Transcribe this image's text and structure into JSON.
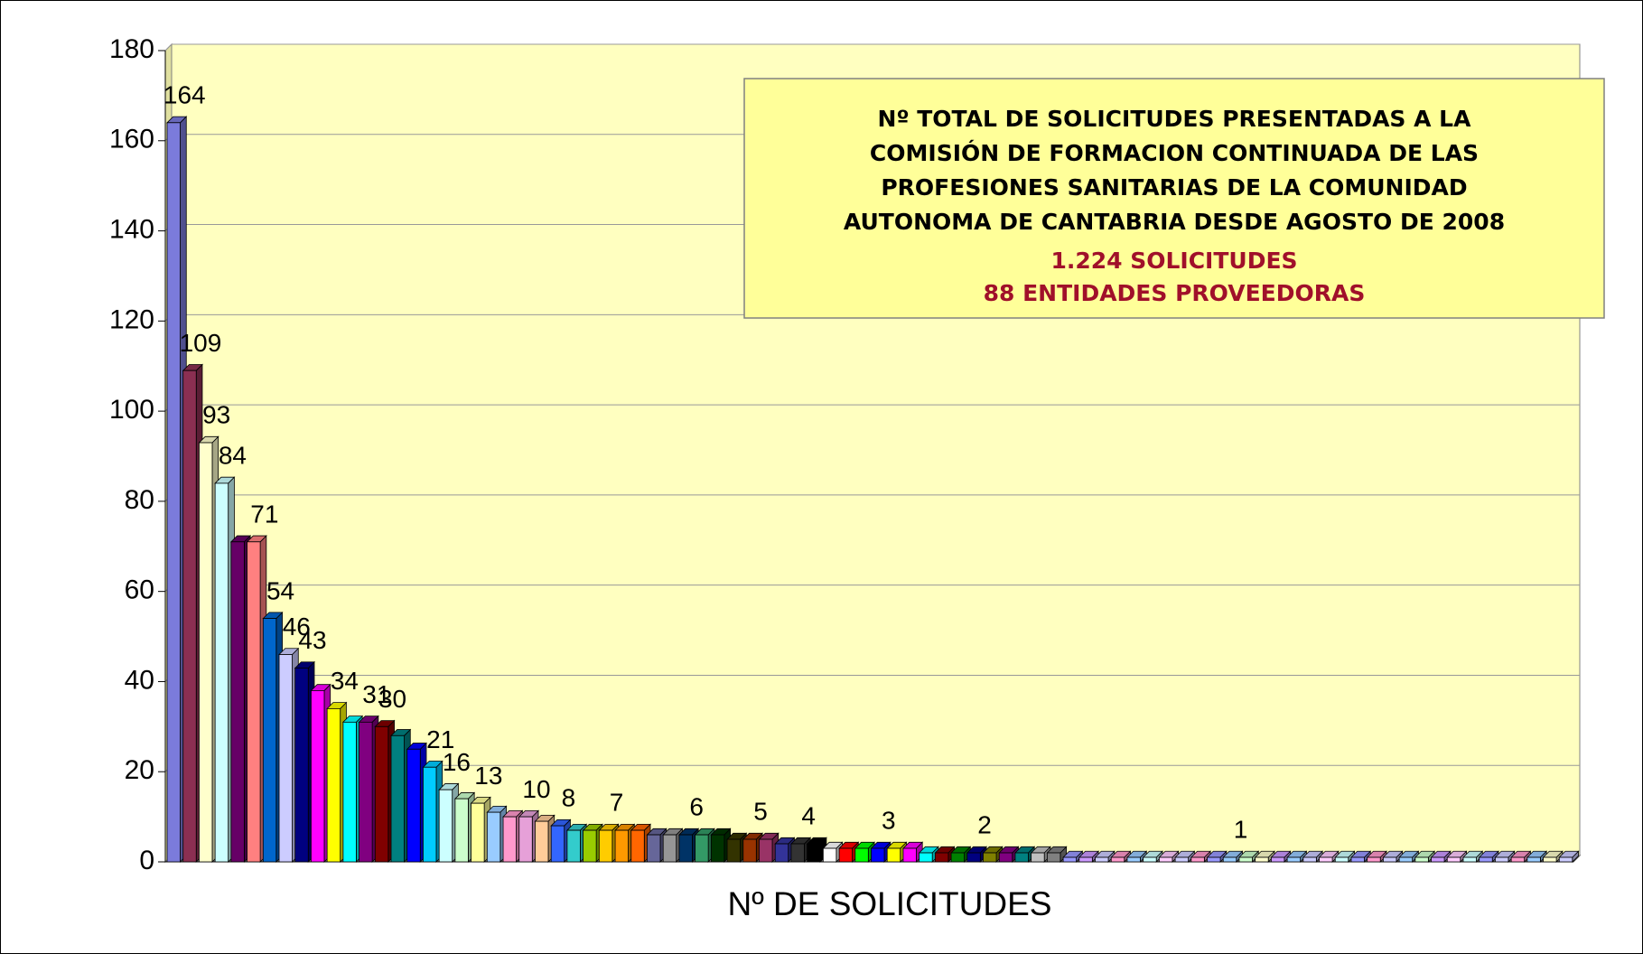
{
  "chart_data": {
    "type": "bar3d",
    "title_lines": [
      "Nº TOTAL DE SOLICITUDES PRESENTADAS A LA",
      "COMISIÓN DE FORMACION CONTINUADA DE LAS",
      "PROFESIONES SANITARIAS DE LA COMUNIDAD",
      "AUTONOMA DE CANTABRIA DESDE AGOSTO DE 2008"
    ],
    "summary_lines": [
      "1.224 SOLICITUDES",
      "88 ENTIDADES PROVEEDORAS"
    ],
    "xlabel": "Nº DE SOLICITUDES",
    "values": [
      164,
      109,
      93,
      84,
      71,
      71,
      54,
      46,
      43,
      38,
      34,
      31,
      31,
      30,
      28,
      25,
      21,
      16,
      14,
      13,
      11,
      10,
      10,
      9,
      8,
      7,
      7,
      7,
      7,
      7,
      6,
      6,
      6,
      6,
      6,
      5,
      5,
      5,
      4,
      4,
      4,
      3,
      3,
      3,
      3,
      3,
      3,
      2,
      2,
      2,
      2,
      2,
      2,
      2,
      2,
      2,
      1,
      1,
      1,
      1,
      1,
      1,
      1,
      1,
      1,
      1,
      1,
      1,
      1,
      1,
      1,
      1,
      1,
      1,
      1,
      1,
      1,
      1,
      1,
      1,
      1,
      1,
      1,
      1,
      1,
      1,
      1,
      1
    ],
    "value_labels": [
      "164",
      "109",
      "93",
      "84",
      null,
      "71",
      "54",
      "46",
      "43",
      null,
      "34",
      null,
      "31",
      "30",
      null,
      null,
      "21",
      "16",
      null,
      "13",
      null,
      null,
      "10",
      null,
      "8",
      null,
      null,
      "7",
      null,
      null,
      null,
      null,
      "6",
      null,
      null,
      null,
      "5",
      null,
      null,
      "4",
      null,
      null,
      null,
      null,
      "3",
      null,
      null,
      null,
      null,
      null,
      "2",
      null,
      null,
      null,
      null,
      null,
      null,
      null,
      null,
      null,
      null,
      null,
      null,
      null,
      null,
      null,
      "1",
      null,
      null,
      null,
      null,
      null,
      null,
      null,
      null,
      null,
      null,
      null,
      null,
      null,
      null,
      null,
      null,
      null,
      null,
      null,
      null,
      null
    ],
    "colors": [
      "#7b7bdb",
      "#8b2f52",
      "#ffffcc",
      "#ccffff",
      "#660066",
      "#ff8080",
      "#0066cc",
      "#ccccff",
      "#000080",
      "#ff00ff",
      "#ffff00",
      "#00ffff",
      "#800080",
      "#800000",
      "#008080",
      "#0000ff",
      "#00ccff",
      "#ccffff",
      "#ccffcc",
      "#ffff99",
      "#99ccff",
      "#ff99cc",
      "#e6a0d8",
      "#ffcc99",
      "#3366ff",
      "#33cccc",
      "#99cc00",
      "#ffcc00",
      "#ff9900",
      "#ff6600",
      "#666699",
      "#969696",
      "#003366",
      "#339966",
      "#003300",
      "#333300",
      "#993300",
      "#993366",
      "#333399",
      "#333333",
      "#000000",
      "#ffffff",
      "#ff0000",
      "#00ff00",
      "#0000ff",
      "#ffff00",
      "#ff00ff",
      "#00ffff",
      "#800000",
      "#008000",
      "#000080",
      "#808000",
      "#800080",
      "#008080",
      "#c0c0c0",
      "#808080",
      "#9999ff",
      "#cc99ff",
      "#ccccff",
      "#ff99cc",
      "#99ccff",
      "#ccffff",
      "#ffccff",
      "#ccccff",
      "#ff99cc",
      "#9999ff",
      "#99ccff",
      "#ccffcc",
      "#ffffcc",
      "#cc99ff",
      "#99ccff",
      "#ccccff",
      "#ffccff",
      "#ccffff",
      "#9999ff",
      "#ff99cc",
      "#ccccff",
      "#99ccff",
      "#ccffcc",
      "#cc99ff",
      "#ffccff",
      "#ccffff",
      "#9999ff",
      "#ccccff",
      "#ff99cc",
      "#99ccff",
      "#ffffcc",
      "#ccccff"
    ],
    "ylim": [
      0,
      180
    ],
    "yticks": [
      0,
      20,
      40,
      60,
      80,
      100,
      120,
      140,
      160,
      180
    ],
    "grid": true
  }
}
